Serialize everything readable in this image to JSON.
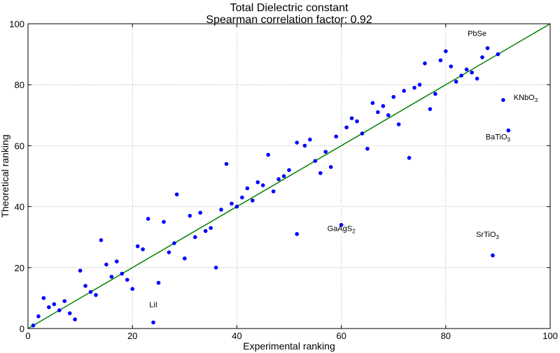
{
  "chart_data": {
    "type": "scatter",
    "title": "Total Dielectric constant",
    "subtitle": "Spearman correlation factor: 0.92",
    "xlabel": "Experimental ranking",
    "ylabel": "Theoretical ranking",
    "xlim": [
      0,
      100
    ],
    "ylim": [
      0,
      100
    ],
    "xticks": [
      "0",
      "20",
      "40",
      "60",
      "80",
      "100"
    ],
    "yticks": [
      "0",
      "20",
      "40",
      "60",
      "80",
      "100"
    ],
    "grid": true,
    "colors": {
      "points": "#0000ff",
      "line": "#008000",
      "axes": "#000000",
      "grid": "#999999"
    },
    "reference_line": {
      "from": [
        0,
        0
      ],
      "to": [
        100,
        100
      ]
    },
    "points": [
      [
        1,
        1
      ],
      [
        2,
        4
      ],
      [
        3,
        10
      ],
      [
        4,
        7
      ],
      [
        5,
        8
      ],
      [
        6,
        6
      ],
      [
        7,
        9
      ],
      [
        8,
        5
      ],
      [
        9,
        3
      ],
      [
        10,
        19
      ],
      [
        11,
        14
      ],
      [
        12,
        12
      ],
      [
        13,
        11
      ],
      [
        14,
        29
      ],
      [
        15,
        21
      ],
      [
        16,
        17
      ],
      [
        17,
        22
      ],
      [
        18,
        18
      ],
      [
        19,
        16
      ],
      [
        20,
        13
      ],
      [
        21,
        27
      ],
      [
        22,
        26
      ],
      [
        23,
        36
      ],
      [
        24,
        2
      ],
      [
        25,
        15
      ],
      [
        26,
        35
      ],
      [
        27,
        25
      ],
      [
        28,
        28
      ],
      [
        28.5,
        44
      ],
      [
        30,
        23
      ],
      [
        31,
        37
      ],
      [
        32,
        30
      ],
      [
        33,
        38
      ],
      [
        34,
        32
      ],
      [
        35,
        33
      ],
      [
        36,
        20
      ],
      [
        37,
        39
      ],
      [
        38,
        54
      ],
      [
        39,
        41
      ],
      [
        40,
        40
      ],
      [
        41,
        43
      ],
      [
        42,
        46
      ],
      [
        43,
        42
      ],
      [
        44,
        48
      ],
      [
        45,
        47
      ],
      [
        46,
        57
      ],
      [
        47,
        45
      ],
      [
        48,
        49
      ],
      [
        49,
        50
      ],
      [
        50,
        52
      ],
      [
        51.5,
        31
      ],
      [
        51.5,
        61
      ],
      [
        53,
        60
      ],
      [
        54,
        62
      ],
      [
        55,
        55
      ],
      [
        56,
        51
      ],
      [
        57,
        58
      ],
      [
        58,
        53
      ],
      [
        59,
        63
      ],
      [
        60,
        34
      ],
      [
        61,
        66
      ],
      [
        62,
        69
      ],
      [
        63,
        68
      ],
      [
        64,
        64
      ],
      [
        65,
        59
      ],
      [
        66,
        74
      ],
      [
        67,
        71
      ],
      [
        68,
        73
      ],
      [
        69,
        70
      ],
      [
        70,
        76
      ],
      [
        71,
        67
      ],
      [
        72,
        78
      ],
      [
        73,
        56
      ],
      [
        74,
        79
      ],
      [
        75,
        80
      ],
      [
        76,
        87
      ],
      [
        77,
        72
      ],
      [
        78,
        77
      ],
      [
        79,
        88
      ],
      [
        80,
        91
      ],
      [
        81,
        86
      ],
      [
        82,
        81
      ],
      [
        83,
        83
      ],
      [
        84,
        85
      ],
      [
        85,
        84
      ],
      [
        86,
        82
      ],
      [
        87,
        89
      ],
      [
        88,
        92
      ],
      [
        89,
        24
      ],
      [
        90,
        90
      ],
      [
        91,
        75
      ],
      [
        92,
        65
      ]
    ],
    "annotations": [
      {
        "base": "PbSe",
        "sub": "",
        "at": [
          88,
          92
        ],
        "dx": -2,
        "dy": 4,
        "anchor": "middle"
      },
      {
        "base": "KNbO",
        "sub": "3",
        "at": [
          91,
          75
        ],
        "dx": 2,
        "dy": 0,
        "anchor": "start"
      },
      {
        "base": "BaTiO",
        "sub": "3",
        "at": [
          92,
          65
        ],
        "dx": -2,
        "dy": -3,
        "anchor": "middle"
      },
      {
        "base": "GaAgS",
        "sub": "2",
        "at": [
          60,
          34
        ],
        "dx": 0,
        "dy": -2,
        "anchor": "middle"
      },
      {
        "base": "SrTiO",
        "sub": "3",
        "at": [
          89,
          24
        ],
        "dx": -1,
        "dy": 6,
        "anchor": "middle"
      },
      {
        "base": "LiI",
        "sub": "",
        "at": [
          24,
          2
        ],
        "dx": 0,
        "dy": 5,
        "anchor": "middle"
      }
    ]
  }
}
